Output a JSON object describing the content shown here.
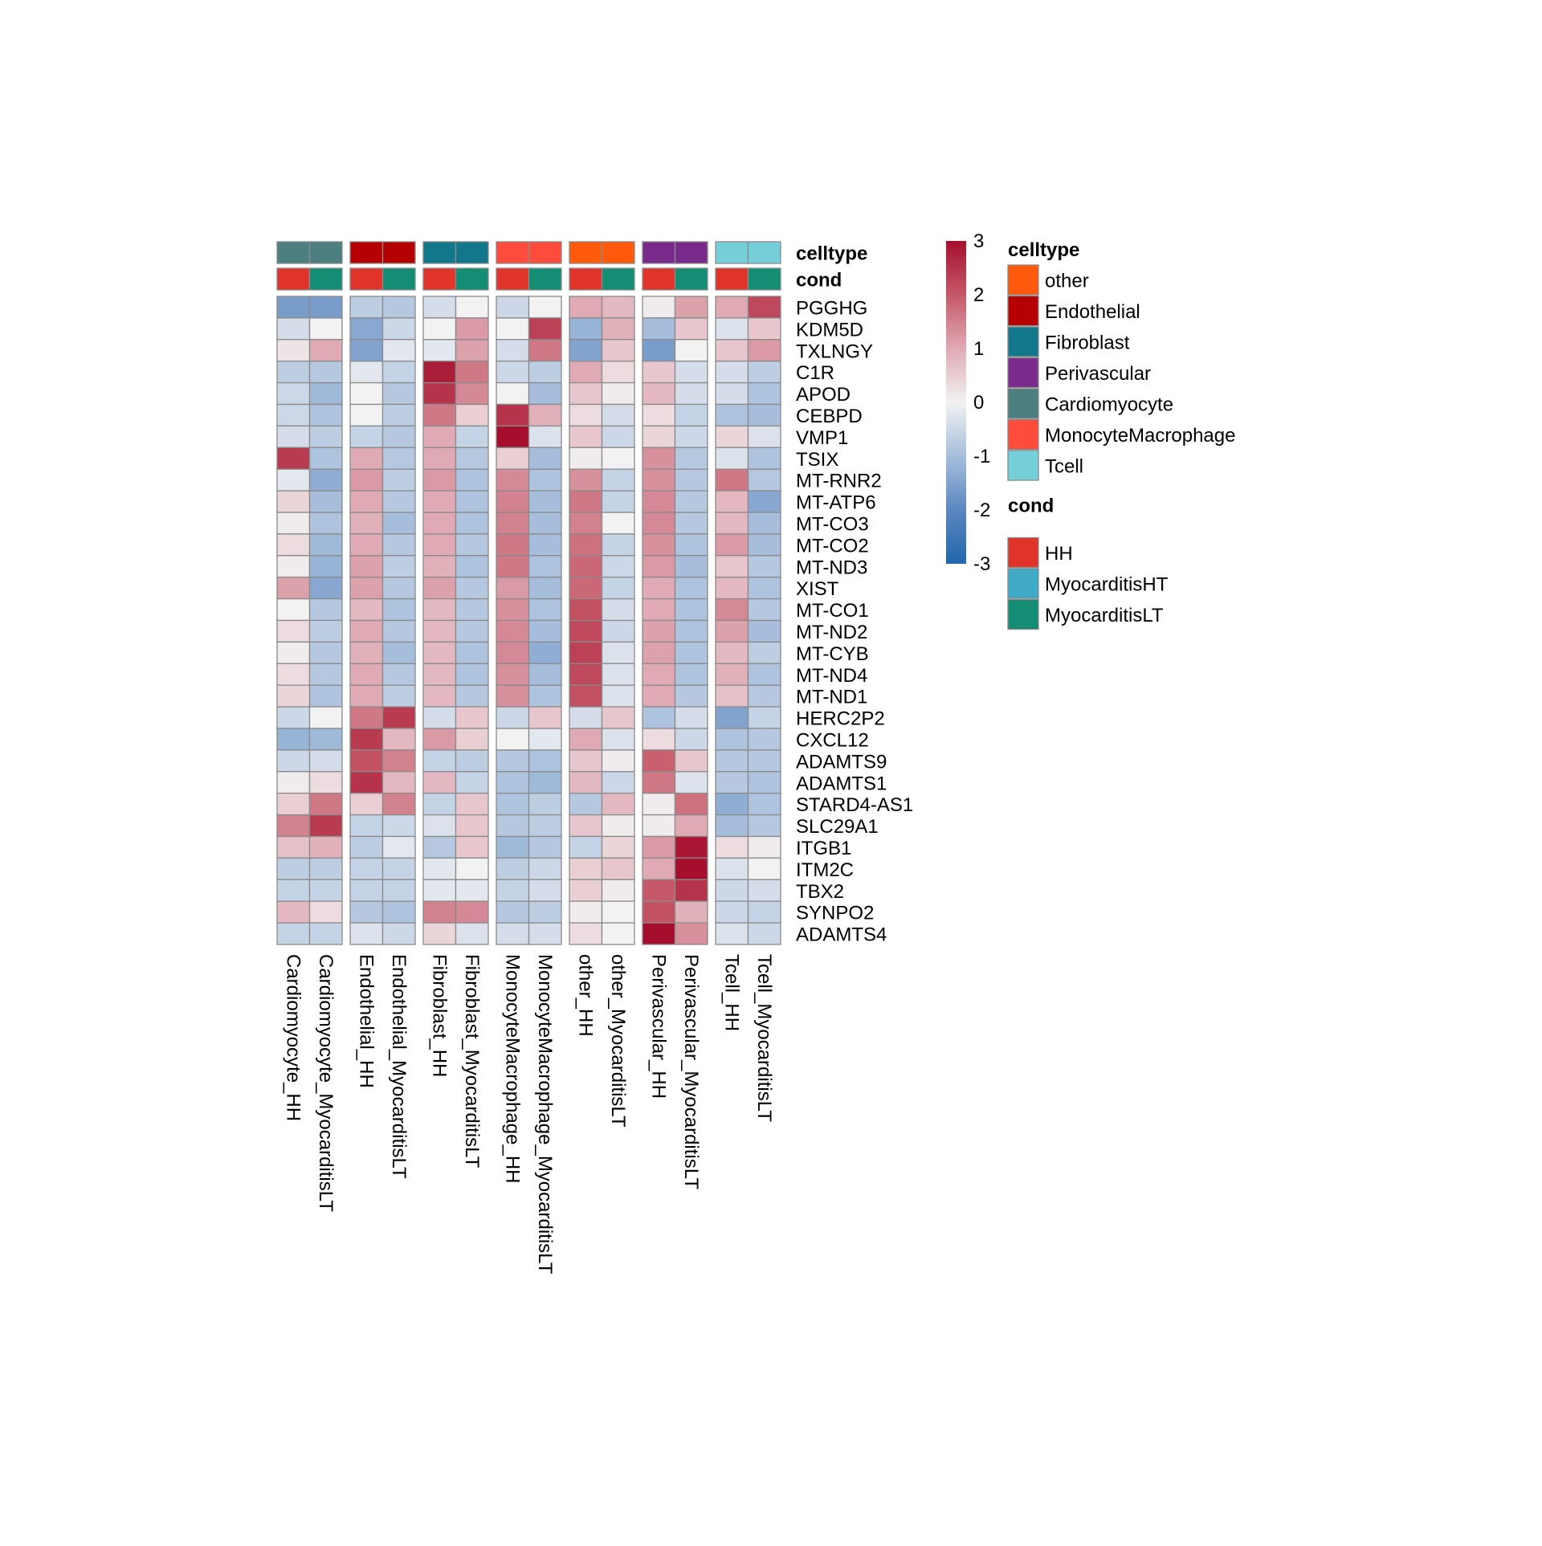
{
  "chart_data": {
    "type": "heatmap",
    "value_range": [
      -3,
      3
    ],
    "colorbar": {
      "ticks": [
        "3",
        "2",
        "1",
        "0",
        "-1",
        "-2",
        "-3"
      ],
      "tick_values": [
        3,
        2,
        1,
        0,
        -1,
        -2,
        -3
      ],
      "stops": [
        {
          "value": -3,
          "color": "#2166ac"
        },
        {
          "value": -2,
          "color": "#5b87c0"
        },
        {
          "value": -1,
          "color": "#a6bedc"
        },
        {
          "value": 0,
          "color": "#f2f2f2"
        },
        {
          "value": 1,
          "color": "#dfaab4"
        },
        {
          "value": 2,
          "color": "#c55868"
        },
        {
          "value": 3,
          "color": "#a50f2d"
        }
      ]
    },
    "annotation_rows": [
      {
        "name": "celltype",
        "label": "celltype"
      },
      {
        "name": "cond",
        "label": "cond"
      }
    ],
    "column_groups": [
      {
        "celltype": "Cardiomyocyte",
        "columns": [
          0,
          1
        ]
      },
      {
        "celltype": "Endothelial",
        "columns": [
          2,
          3
        ]
      },
      {
        "celltype": "Fibroblast",
        "columns": [
          4,
          5
        ]
      },
      {
        "celltype": "MonocyteMacrophage",
        "columns": [
          6,
          7
        ]
      },
      {
        "celltype": "other",
        "columns": [
          8,
          9
        ]
      },
      {
        "celltype": "Perivascular",
        "columns": [
          10,
          11
        ]
      },
      {
        "celltype": "Tcell",
        "columns": [
          12,
          13
        ]
      }
    ],
    "columns": [
      {
        "label": "Cardiomyocyte_HH",
        "celltype": "Cardiomyocyte",
        "cond": "HH"
      },
      {
        "label": "Cardiomyocyte_MyocarditisLT",
        "celltype": "Cardiomyocyte",
        "cond": "MyocarditisLT"
      },
      {
        "label": "Endothelial_HH",
        "celltype": "Endothelial",
        "cond": "HH"
      },
      {
        "label": "Endothelial_MyocarditisLT",
        "celltype": "Endothelial",
        "cond": "MyocarditisLT"
      },
      {
        "label": "Fibroblast_HH",
        "celltype": "Fibroblast",
        "cond": "HH"
      },
      {
        "label": "Fibroblast_MyocarditisLT",
        "celltype": "Fibroblast",
        "cond": "MyocarditisLT"
      },
      {
        "label": "MonocyteMacrophage_HH",
        "celltype": "MonocyteMacrophage",
        "cond": "HH"
      },
      {
        "label": "MonocyteMacrophage_MyocarditisLT",
        "celltype": "MonocyteMacrophage",
        "cond": "MyocarditisLT"
      },
      {
        "label": "other_HH",
        "celltype": "other",
        "cond": "HH"
      },
      {
        "label": "other_MyocarditisLT",
        "celltype": "other",
        "cond": "MyocarditisLT"
      },
      {
        "label": "Perivascular_HH",
        "celltype": "Perivascular",
        "cond": "HH"
      },
      {
        "label": "Perivascular_MyocarditisLT",
        "celltype": "Perivascular",
        "cond": "MyocarditisLT"
      },
      {
        "label": "Tcell_HH",
        "celltype": "Tcell",
        "cond": "HH"
      },
      {
        "label": "Tcell_MyocarditisLT",
        "celltype": "Tcell",
        "cond": "MyocarditisLT"
      }
    ],
    "rows": [
      "PGGHG",
      "KDM5D",
      "TXLNGY",
      "C1R",
      "APOD",
      "CEBPD",
      "VMP1",
      "TSIX",
      "MT-RNR2",
      "MT-ATP6",
      "MT-CO3",
      "MT-CO2",
      "MT-ND3",
      "XIST",
      "MT-CO1",
      "MT-ND2",
      "MT-CYB",
      "MT-ND4",
      "MT-ND1",
      "HERC2P2",
      "CXCL12",
      "ADAMTS9",
      "ADAMTS1",
      "STARD4-AS1",
      "SLC29A1",
      "ITGB1",
      "ITM2C",
      "TBX2",
      "SYNPO2",
      "ADAMTS4"
    ],
    "values": [
      [
        -1.6,
        -1.6,
        -0.7,
        -0.8,
        -0.4,
        0.0,
        -0.5,
        0.0,
        1.0,
        0.8,
        0.1,
        1.1,
        1.0,
        2.2
      ],
      [
        -0.4,
        0.0,
        -1.4,
        -0.5,
        0.0,
        1.2,
        0.0,
        2.3,
        -1.2,
        0.9,
        -1.0,
        0.6,
        -0.3,
        0.6
      ],
      [
        0.2,
        1.0,
        -1.5,
        -0.2,
        -0.2,
        1.1,
        -0.4,
        1.6,
        -1.5,
        0.6,
        -1.6,
        0.0,
        0.6,
        1.2
      ],
      [
        -0.7,
        -0.8,
        -0.2,
        -0.6,
        2.8,
        1.6,
        -0.5,
        -0.7,
        1.0,
        0.3,
        0.6,
        -0.4,
        -0.4,
        -0.7
      ],
      [
        -0.5,
        -1.1,
        0.0,
        -0.8,
        2.5,
        1.4,
        0.0,
        -1.0,
        0.6,
        0.1,
        0.8,
        -0.4,
        -0.4,
        -0.9
      ],
      [
        -0.5,
        -0.9,
        0.0,
        -0.7,
        1.6,
        0.5,
        2.5,
        0.9,
        0.3,
        -0.4,
        0.3,
        -0.6,
        -0.9,
        -1.0
      ],
      [
        -0.4,
        -0.7,
        -0.6,
        -0.8,
        1.0,
        -0.6,
        3.0,
        -0.3,
        0.6,
        -0.5,
        0.4,
        -0.5,
        0.4,
        -0.3
      ],
      [
        2.4,
        -0.9,
        1.0,
        -0.8,
        1.0,
        -0.8,
        0.5,
        -1.0,
        0.1,
        0.0,
        1.3,
        -0.8,
        -0.3,
        -0.9
      ],
      [
        -0.2,
        -1.3,
        1.2,
        -0.7,
        1.2,
        -0.9,
        1.4,
        -0.9,
        1.3,
        -0.6,
        1.3,
        -0.8,
        1.6,
        -0.8
      ],
      [
        0.4,
        -1.0,
        1.0,
        -0.8,
        1.0,
        -0.9,
        1.5,
        -1.0,
        1.6,
        -0.6,
        1.4,
        -0.8,
        0.8,
        -1.4
      ],
      [
        0.1,
        -0.9,
        0.9,
        -1.0,
        1.0,
        -0.9,
        1.5,
        -1.0,
        1.5,
        0.0,
        1.4,
        -0.8,
        0.8,
        -1.0
      ],
      [
        0.3,
        -1.1,
        1.0,
        -0.8,
        1.0,
        -0.8,
        1.6,
        -1.0,
        1.7,
        -0.6,
        1.3,
        -0.9,
        1.2,
        -1.0
      ],
      [
        0.1,
        -1.2,
        1.1,
        -0.7,
        0.9,
        -0.9,
        1.6,
        -0.9,
        1.8,
        -0.5,
        1.2,
        -1.0,
        0.6,
        -0.8
      ],
      [
        1.1,
        -1.4,
        1.1,
        -0.8,
        1.1,
        -0.8,
        1.2,
        -1.0,
        1.8,
        -0.6,
        1.0,
        -0.9,
        0.8,
        -0.9
      ],
      [
        0.0,
        -0.8,
        0.8,
        -0.9,
        0.8,
        -0.8,
        1.3,
        -0.9,
        2.1,
        -0.4,
        1.0,
        -0.9,
        1.4,
        -0.8
      ],
      [
        0.3,
        -0.7,
        1.0,
        -0.8,
        0.8,
        -0.8,
        1.4,
        -1.0,
        2.2,
        -0.5,
        1.1,
        -0.9,
        1.1,
        -1.0
      ],
      [
        0.1,
        -0.8,
        0.9,
        -1.0,
        0.8,
        -0.9,
        1.4,
        -1.3,
        2.3,
        -0.3,
        1.1,
        -0.9,
        0.8,
        -0.7
      ],
      [
        0.3,
        -0.8,
        1.0,
        -0.8,
        0.8,
        -0.9,
        1.3,
        -1.0,
        2.2,
        -0.3,
        1.0,
        -0.9,
        0.9,
        -0.9
      ],
      [
        0.4,
        -0.9,
        1.0,
        -0.7,
        0.8,
        -0.8,
        1.3,
        -0.9,
        2.1,
        -0.3,
        1.0,
        -0.8,
        0.7,
        -0.8
      ],
      [
        -0.5,
        0.0,
        1.6,
        2.4,
        -0.4,
        0.6,
        -0.5,
        0.6,
        -0.4,
        0.6,
        -0.9,
        -0.4,
        -1.5,
        -0.6
      ],
      [
        -1.2,
        -1.1,
        2.4,
        0.8,
        1.2,
        0.5,
        0.0,
        -0.2,
        1.0,
        -0.3,
        0.3,
        -0.5,
        -0.9,
        -0.8
      ],
      [
        -0.5,
        -0.4,
        2.1,
        1.5,
        -0.6,
        -0.7,
        -0.8,
        -0.9,
        0.6,
        0.1,
        1.9,
        0.6,
        -0.8,
        -0.8
      ],
      [
        0.1,
        0.3,
        2.5,
        0.8,
        0.8,
        -0.6,
        -0.9,
        -1.1,
        0.8,
        -0.5,
        1.6,
        -0.3,
        -0.8,
        -0.9
      ],
      [
        0.5,
        1.6,
        0.5,
        1.5,
        -0.6,
        0.6,
        -0.9,
        -0.7,
        -0.8,
        0.8,
        0.1,
        1.7,
        -1.3,
        -0.9
      ],
      [
        1.5,
        2.4,
        -0.6,
        -0.5,
        -0.3,
        0.6,
        -0.8,
        -0.7,
        0.6,
        0.1,
        0.1,
        1.0,
        -1.0,
        -0.8
      ],
      [
        0.7,
        0.9,
        -0.7,
        -0.2,
        -0.8,
        0.6,
        -1.1,
        -0.8,
        -0.6,
        0.4,
        1.2,
        2.9,
        0.3,
        0.1
      ],
      [
        -0.7,
        -0.7,
        -0.6,
        -0.6,
        -0.2,
        0.0,
        -0.7,
        -0.5,
        0.5,
        0.6,
        1.0,
        3.0,
        -0.3,
        0.0
      ],
      [
        -0.6,
        -0.6,
        -0.6,
        -0.6,
        -0.2,
        -0.2,
        -0.6,
        -0.4,
        0.5,
        0.1,
        2.0,
        2.5,
        -0.5,
        -0.4
      ],
      [
        0.8,
        0.3,
        -0.8,
        -0.9,
        1.5,
        1.4,
        -0.8,
        -0.7,
        0.1,
        0.0,
        2.1,
        0.9,
        -0.5,
        -0.6
      ],
      [
        -0.6,
        -0.6,
        -0.3,
        -0.5,
        0.4,
        -0.3,
        -0.4,
        -0.4,
        0.3,
        0.0,
        3.0,
        1.3,
        -0.3,
        -0.5
      ]
    ],
    "legends": [
      {
        "name": "celltype",
        "title": "celltype",
        "entries": [
          {
            "label": "other",
            "color": "#ff5a0b"
          },
          {
            "label": "Endothelial",
            "color": "#b40000"
          },
          {
            "label": "Fibroblast",
            "color": "#13778b"
          },
          {
            "label": "Perivascular",
            "color": "#7a2a8a"
          },
          {
            "label": "Cardiomyocyte",
            "color": "#4e7f80"
          },
          {
            "label": "MonocyteMacrophage",
            "color": "#fd4c3b"
          },
          {
            "label": "Tcell",
            "color": "#74cfd9"
          }
        ]
      },
      {
        "name": "cond",
        "title": "cond",
        "entries": [
          {
            "label": "HH",
            "color": "#e0342a"
          },
          {
            "label": "MyocarditisHT",
            "color": "#40aac6"
          },
          {
            "label": "MyocarditisLT",
            "color": "#138d73"
          }
        ]
      }
    ]
  }
}
